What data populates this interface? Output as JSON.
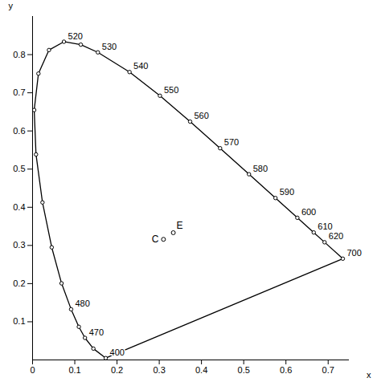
{
  "chart_data": {
    "type": "line",
    "x_label": "x",
    "y_label": "y",
    "xlim": [
      0,
      0.75
    ],
    "ylim": [
      0,
      0.9
    ],
    "xticks": [
      0,
      0.1,
      0.2,
      0.3,
      0.4,
      0.5,
      0.6,
      0.7
    ],
    "yticks": [
      0.1,
      0.2,
      0.3,
      0.4,
      0.5,
      0.6,
      0.7,
      0.8
    ],
    "x": [
      0.1733,
      0.144,
      0.1241,
      0.1096,
      0.0913,
      0.0687,
      0.0454,
      0.0235,
      0.0082,
      0.0039,
      0.0139,
      0.0389,
      0.0743,
      0.1142,
      0.1547,
      0.2296,
      0.3016,
      0.3731,
      0.4441,
      0.5125,
      0.5752,
      0.627,
      0.6658,
      0.6915,
      0.7347
    ],
    "values": [
      0.0048,
      0.0297,
      0.0578,
      0.0868,
      0.1327,
      0.2007,
      0.295,
      0.4127,
      0.5384,
      0.6548,
      0.7502,
      0.812,
      0.8338,
      0.8262,
      0.8059,
      0.7543,
      0.6923,
      0.6245,
      0.5547,
      0.4866,
      0.4242,
      0.3725,
      0.334,
      0.3083,
      0.2653
    ],
    "labels": [
      "400",
      null,
      "470",
      null,
      "480",
      null,
      null,
      null,
      null,
      null,
      null,
      null,
      "520",
      null,
      "530",
      "540",
      "550",
      "560",
      "570",
      "580",
      "590",
      "600",
      "610",
      "620",
      "700"
    ],
    "color": "#000000",
    "marker": "circle",
    "points": [
      {
        "label": "C",
        "x": 0.31,
        "y": 0.316
      },
      {
        "label": "E",
        "x": 0.3333,
        "y": 0.3333
      }
    ]
  }
}
